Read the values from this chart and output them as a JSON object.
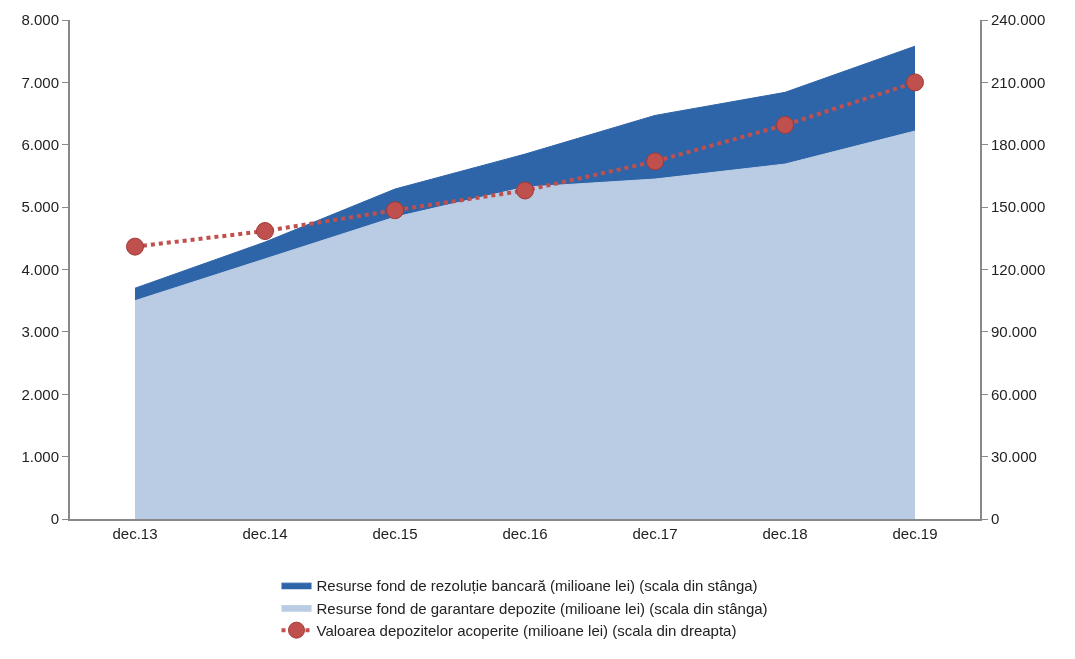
{
  "chart_data": {
    "type": "area",
    "stacked": true,
    "categories": [
      "dec.13",
      "dec.14",
      "dec.15",
      "dec.16",
      "dec.17",
      "dec.18",
      "dec.19"
    ],
    "series": [
      {
        "name": "Resurse fond de garantare depozite (milioane lei) (scala din stânga)",
        "color": "#b9cce4",
        "values": [
          3500,
          4170,
          4840,
          5320,
          5450,
          5690,
          6220
        ]
      },
      {
        "name": "Resurse fond de rezoluție bancară (milioane lei) (scala din stânga)",
        "color": "#2e64a8",
        "values": [
          200,
          270,
          450,
          530,
          1020,
          1150,
          1360
        ]
      },
      {
        "name": "Valoarea depozitelor acoperite (milioane lei) (scala din dreapta)",
        "type": "line",
        "axis": "y2",
        "marker": "circle",
        "line_style": "dotted",
        "color": "#c0504d",
        "values": [
          131000,
          138500,
          148500,
          158000,
          172000,
          189500,
          210000
        ]
      }
    ],
    "ylim": [
      0,
      8000
    ],
    "yticks": [
      0,
      {
        "value": 1000,
        "label": "1.000"
      },
      {
        "value": 2000,
        "label": "2.000"
      },
      {
        "value": 3000,
        "label": "3.000"
      },
      {
        "value": 4000,
        "label": "4.000"
      },
      {
        "value": 5000,
        "label": "5.000"
      },
      {
        "value": 6000,
        "label": "6.000"
      },
      {
        "value": 7000,
        "label": "7.000"
      },
      {
        "value": 8000,
        "label": "8.000"
      }
    ],
    "y2lim": [
      0,
      240000
    ],
    "y2ticks": [
      0,
      {
        "value": 30000,
        "label": "30.000"
      },
      {
        "value": 60000,
        "label": "60.000"
      },
      {
        "value": 90000,
        "label": "90.000"
      },
      {
        "value": 120000,
        "label": "120.000"
      },
      {
        "value": 150000,
        "label": "150.000"
      },
      {
        "value": 180000,
        "label": "180.000"
      },
      {
        "value": 210000,
        "label": "210.000"
      },
      {
        "value": 240000,
        "label": "240.000"
      }
    ],
    "grid": false,
    "legend": "bottom"
  }
}
